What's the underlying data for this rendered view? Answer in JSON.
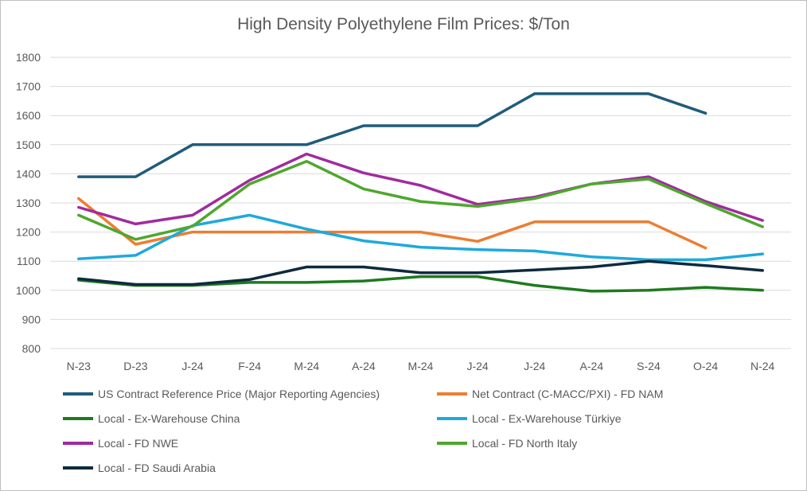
{
  "chart_data": {
    "type": "line",
    "title": "High Density Polyethylene Film Prices: $/Ton",
    "xlabel": "",
    "ylabel": "",
    "ylim": [
      800,
      1800
    ],
    "y_ticks": [
      800,
      900,
      1000,
      1100,
      1200,
      1300,
      1400,
      1500,
      1600,
      1700,
      1800
    ],
    "grid": true,
    "legend_position": "bottom",
    "categories": [
      "N-23",
      "D-23",
      "J-24",
      "F-24",
      "M-24",
      "A-24",
      "M-24",
      "J-24",
      "J-24",
      "A-24",
      "S-24",
      "O-24",
      "N-24"
    ],
    "series": [
      {
        "name": "US Contract Reference Price (Major Reporting Agencies)",
        "color": "#1f5c7a",
        "values": [
          1390,
          1390,
          1500,
          1500,
          1500,
          1565,
          1565,
          1565,
          1675,
          1675,
          1675,
          1608,
          null
        ]
      },
      {
        "name": "Net Contract (C-MACC/PXI) - FD NAM",
        "color": "#ed7d31",
        "values": [
          1315,
          1158,
          1200,
          1200,
          1200,
          1200,
          1200,
          1168,
          1235,
          1235,
          1235,
          1145,
          null
        ]
      },
      {
        "name": "Local - Ex-Warehouse China",
        "color": "#1e7a1e",
        "values": [
          1035,
          1017,
          1017,
          1027,
          1027,
          1032,
          1047,
          1047,
          1017,
          997,
          1000,
          1010,
          1000
        ]
      },
      {
        "name": "Local - Ex-Warehouse Türkiye",
        "color": "#1fa9dc",
        "values": [
          1108,
          1120,
          1222,
          1258,
          1210,
          1170,
          1148,
          1140,
          1135,
          1115,
          1105,
          1105,
          1125
        ]
      },
      {
        "name": "Local - FD NWE",
        "color": "#a02b9e",
        "values": [
          1285,
          1228,
          1258,
          1378,
          1468,
          1403,
          1360,
          1295,
          1320,
          1365,
          1390,
          1305,
          1240
        ]
      },
      {
        "name": "Local - FD North Italy",
        "color": "#4ea72e",
        "values": [
          1258,
          1175,
          1220,
          1365,
          1443,
          1348,
          1305,
          1288,
          1315,
          1365,
          1382,
          1298,
          1218
        ]
      },
      {
        "name": "Local - FD Saudi Arabia",
        "color": "#0e2a3e",
        "values": [
          1040,
          1020,
          1020,
          1037,
          1080,
          1080,
          1060,
          1060,
          1070,
          1080,
          1100,
          1085,
          1068
        ]
      }
    ]
  }
}
